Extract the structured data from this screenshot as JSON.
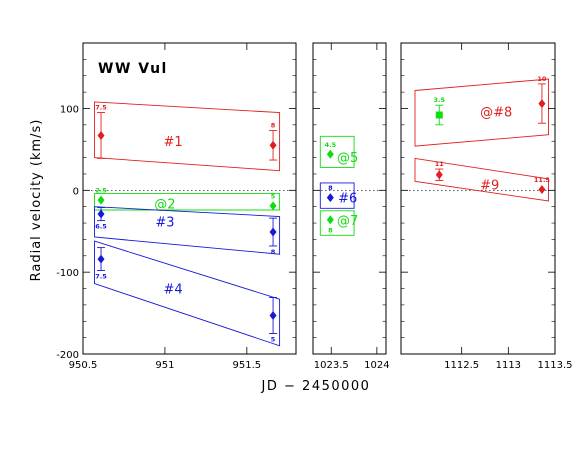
{
  "chart_data": {
    "type": "scatter",
    "title": "WW Vul",
    "xlabel": "JD − 2450000",
    "ylabel": "Radial velocity (km/s)",
    "ylim": [
      -200,
      180
    ],
    "y_ticks": [
      100,
      0,
      -100,
      -200
    ],
    "colors": {
      "red": "#e02020",
      "green": "#10dd10",
      "blue": "#1818d8"
    },
    "panels": [
      {
        "xlim": [
          950.5,
          951.8
        ],
        "x_ticks": [
          950.5,
          951,
          951.5
        ],
        "tick_labels": [
          "950.5",
          "951",
          "951.5"
        ],
        "points": [
          {
            "x": 950.61,
            "y": 67,
            "err": 28,
            "color": "red",
            "label": "7.5",
            "label_pos": "above"
          },
          {
            "x": 951.66,
            "y": 55,
            "err": 18,
            "color": "red",
            "label": "8",
            "label_pos": "above"
          },
          {
            "x": 950.61,
            "y": -12,
            "err": 0,
            "color": "green",
            "label": "2.5",
            "label_pos": "above"
          },
          {
            "x": 951.66,
            "y": -19,
            "err": 0,
            "color": "green",
            "label": "5",
            "label_pos": "above"
          },
          {
            "x": 950.61,
            "y": -29,
            "err": 8,
            "color": "blue",
            "label": "6.5",
            "label_pos": "below"
          },
          {
            "x": 951.66,
            "y": -51,
            "err": 17,
            "color": "blue",
            "label": "8",
            "label_pos": "below"
          },
          {
            "x": 950.61,
            "y": -84,
            "err": 14,
            "color": "blue",
            "label": "7.5",
            "label_pos": "below"
          },
          {
            "x": 951.66,
            "y": -153,
            "err": 22,
            "color": "blue",
            "label": "5",
            "label_pos": "below"
          }
        ],
        "boxes": [
          {
            "color": "red",
            "label": "#1",
            "label_x": 951.05,
            "label_y": 60,
            "corners": [
              [
                950.57,
                108
              ],
              [
                951.7,
                95
              ],
              [
                951.7,
                24
              ],
              [
                950.57,
                40
              ]
            ]
          },
          {
            "color": "green",
            "label": "@2",
            "label_x": 951.0,
            "label_y": -16,
            "corners": [
              [
                950.57,
                -4
              ],
              [
                951.7,
                -4
              ],
              [
                951.7,
                -24
              ],
              [
                950.57,
                -24
              ]
            ]
          },
          {
            "color": "blue",
            "label": "#3",
            "label_x": 951.0,
            "label_y": -38,
            "corners": [
              [
                950.57,
                -20
              ],
              [
                951.7,
                -32
              ],
              [
                951.7,
                -78
              ],
              [
                950.57,
                -57
              ]
            ]
          },
          {
            "color": "blue",
            "label": "#4",
            "label_x": 951.05,
            "label_y": -120,
            "corners": [
              [
                950.57,
                -62
              ],
              [
                951.7,
                -133
              ],
              [
                951.7,
                -190
              ],
              [
                950.57,
                -114
              ]
            ]
          }
        ]
      },
      {
        "xlim": [
          1023.3,
          1024.1
        ],
        "x_ticks": [
          1023.5,
          1024
        ],
        "tick_labels": [
          "1023.5",
          "1024"
        ],
        "points": [
          {
            "x": 1023.49,
            "y": 44,
            "err": 0,
            "color": "green",
            "label": "4.5",
            "label_pos": "above"
          },
          {
            "x": 1023.49,
            "y": -9,
            "err": 0,
            "color": "blue",
            "label": "8",
            "label_pos": "above"
          },
          {
            "x": 1023.49,
            "y": -36,
            "err": 0,
            "color": "green",
            "label": "8",
            "label_pos": "below"
          }
        ],
        "boxes": [
          {
            "color": "green",
            "label": "@5",
            "label_x": 1023.68,
            "label_y": 41,
            "corners": [
              [
                1023.38,
                66
              ],
              [
                1023.75,
                66
              ],
              [
                1023.75,
                28
              ],
              [
                1023.38,
                28
              ]
            ]
          },
          {
            "color": "blue",
            "label": "#6",
            "label_x": 1023.68,
            "label_y": -9,
            "corners": [
              [
                1023.38,
                9
              ],
              [
                1023.75,
                9
              ],
              [
                1023.75,
                -22
              ],
              [
                1023.38,
                -22
              ]
            ]
          },
          {
            "color": "green",
            "label": "@7",
            "label_x": 1023.68,
            "label_y": -36,
            "corners": [
              [
                1023.38,
                -25
              ],
              [
                1023.75,
                -25
              ],
              [
                1023.75,
                -55
              ],
              [
                1023.38,
                -55
              ]
            ]
          }
        ]
      },
      {
        "xlim": [
          1111.85,
          1113.5
        ],
        "x_ticks": [
          1112.5,
          1113,
          1113.5
        ],
        "tick_labels": [
          "1112.5",
          "1113",
          "1113.5"
        ],
        "points": [
          {
            "x": 1112.26,
            "y": 92,
            "err": 12,
            "color": "green",
            "label": "3.5",
            "label_pos": "above",
            "marker": "square"
          },
          {
            "x": 1113.36,
            "y": 106,
            "err": 24,
            "color": "red",
            "label": "10",
            "label_pos": "above"
          },
          {
            "x": 1112.26,
            "y": 19,
            "err": 7,
            "color": "red",
            "label": "11",
            "label_pos": "above"
          },
          {
            "x": 1113.36,
            "y": 1,
            "err": 0,
            "color": "red",
            "label": "11.5",
            "label_pos": "above"
          }
        ],
        "boxes": [
          {
            "color": "red",
            "label": "@#8",
            "label_x": 1112.87,
            "label_y": 96,
            "corners": [
              [
                1112.0,
                122
              ],
              [
                1113.43,
                136
              ],
              [
                1113.43,
                68
              ],
              [
                1112.0,
                54
              ]
            ]
          },
          {
            "color": "red",
            "label": "#9",
            "label_x": 1112.8,
            "label_y": 7,
            "corners": [
              [
                1112.0,
                39
              ],
              [
                1113.43,
                14
              ],
              [
                1113.43,
                -13
              ],
              [
                1112.0,
                11
              ]
            ]
          }
        ]
      }
    ]
  }
}
